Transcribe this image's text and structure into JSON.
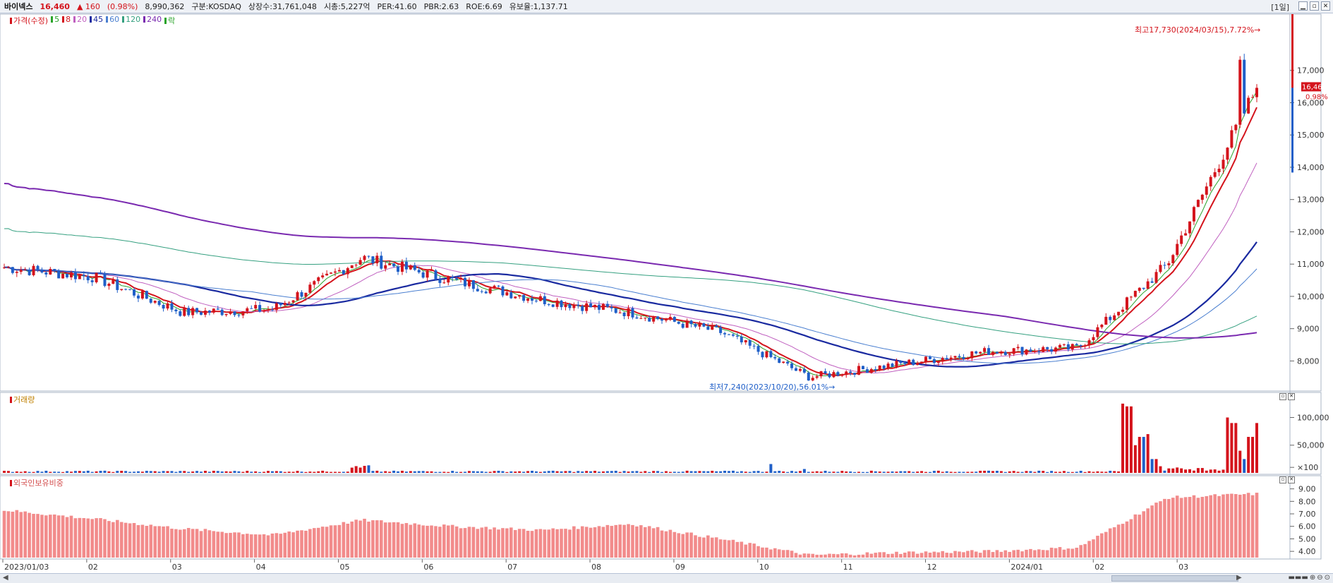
{
  "header": {
    "name": "바이넥스",
    "price": "16,460",
    "change": "▲ 160",
    "change_pct": "(0.98%)",
    "volume": "8,990,362",
    "market": "구분:KOSDAQ",
    "shares": "상장수:31,761,048",
    "mcap": "시총:5,227억",
    "per": "PER:41.60",
    "pbr": "PBR:2.63",
    "roe": "ROE:6.69",
    "float": "유보율:1,137.71",
    "period": "[1일]"
  },
  "legend": {
    "items": [
      {
        "label": "가격(수정)",
        "color": "#d4141c"
      },
      {
        "label": "5",
        "color": "#2aa32a"
      },
      {
        "label": "8",
        "color": "#d4141c"
      },
      {
        "label": "20",
        "color": "#c060c0"
      },
      {
        "label": "45",
        "color": "#1a2aa0"
      },
      {
        "label": "60",
        "color": "#4a7fd0"
      },
      {
        "label": "120",
        "color": "#35a080"
      },
      {
        "label": "240",
        "color": "#7a2ab0"
      },
      {
        "label": "락",
        "color": "#2aa32a"
      }
    ]
  },
  "annotations": {
    "high": "최고17,730(2024/03/15),7.72%→",
    "low": "최저7,240(2023/10/20),56.01%→",
    "last_price": "16,460",
    "last_pct": "0.98%"
  },
  "volume_pane": {
    "label": "거래량"
  },
  "foreign_pane": {
    "label": "외국인보유비중"
  },
  "chart_data": [
    {
      "type": "candlestick",
      "title": "가격(수정)",
      "x_labels": [
        "2023/01/03",
        "02",
        "03",
        "04",
        "05",
        "06",
        "07",
        "08",
        "09",
        "10",
        "11",
        "12",
        "2024/01",
        "02",
        "03"
      ],
      "y_ticks": [
        8000,
        9000,
        10000,
        11000,
        12000,
        13000,
        14000,
        15000,
        16000,
        17000
      ],
      "ylim": [
        7200,
        18000
      ],
      "high": {
        "value": 17730,
        "date": "2024/03/15",
        "pct": 7.72
      },
      "low": {
        "value": 7240,
        "date": "2023/10/20",
        "pct": 56.01
      },
      "last": 16460,
      "close_monthly": [
        {
          "date": "2023/01",
          "close": 10900
        },
        {
          "date": "2023/02",
          "close": 10600
        },
        {
          "date": "2023/03",
          "close": 9500
        },
        {
          "date": "2023/04",
          "close": 9600
        },
        {
          "date": "2023/05",
          "close": 11200
        },
        {
          "date": "2023/06",
          "close": 10500
        },
        {
          "date": "2023/07",
          "close": 9900
        },
        {
          "date": "2023/08",
          "close": 9500
        },
        {
          "date": "2023/09",
          "close": 8900
        },
        {
          "date": "2023/10",
          "close": 7500
        },
        {
          "date": "2023/11",
          "close": 7900
        },
        {
          "date": "2023/12",
          "close": 8300
        },
        {
          "date": "2024/01",
          "close": 8400
        },
        {
          "date": "2024/02",
          "close": 11000
        },
        {
          "date": "2024/03",
          "close": 16460
        }
      ],
      "series": [
        {
          "name": "5",
          "color": "#2aa32a"
        },
        {
          "name": "8",
          "color": "#d4141c"
        },
        {
          "name": "20",
          "color": "#c060c0"
        },
        {
          "name": "45",
          "color": "#1a2aa0"
        },
        {
          "name": "60",
          "color": "#4a7fd0"
        },
        {
          "name": "120",
          "color": "#35a080"
        },
        {
          "name": "240",
          "color": "#7a2ab0"
        }
      ]
    },
    {
      "type": "bar",
      "title": "거래량",
      "y_ticks": [
        "100,000",
        "50,000",
        "×100"
      ],
      "spikes": [
        {
          "date": "2024/01/end",
          "value": 125000
        },
        {
          "date": "2024/02/early",
          "value": 65000
        },
        {
          "date": "2024/03/mid",
          "value": 100000
        },
        {
          "date": "2024/03/end",
          "value": 90000
        }
      ]
    },
    {
      "type": "bar",
      "title": "외국인보유비중",
      "y_ticks": [
        "9.00",
        "8.00",
        "7.00",
        "6.00",
        "5.00",
        "4.00"
      ],
      "ylim": [
        3.5,
        9.6
      ],
      "monthly": [
        {
          "date": "2023/01",
          "value": 7.3
        },
        {
          "date": "2023/02",
          "value": 6.6
        },
        {
          "date": "2023/03",
          "value": 5.8
        },
        {
          "date": "2023/04",
          "value": 5.3
        },
        {
          "date": "2023/05",
          "value": 6.5
        },
        {
          "date": "2023/06",
          "value": 6.0
        },
        {
          "date": "2023/07",
          "value": 5.7
        },
        {
          "date": "2023/08",
          "value": 6.2
        },
        {
          "date": "2023/09",
          "value": 5.0
        },
        {
          "date": "2023/10",
          "value": 3.7
        },
        {
          "date": "2023/11",
          "value": 3.9
        },
        {
          "date": "2023/12",
          "value": 4.0
        },
        {
          "date": "2024/01",
          "value": 4.3
        },
        {
          "date": "2024/02",
          "value": 8.3
        },
        {
          "date": "2024/03",
          "value": 8.6
        }
      ]
    }
  ]
}
